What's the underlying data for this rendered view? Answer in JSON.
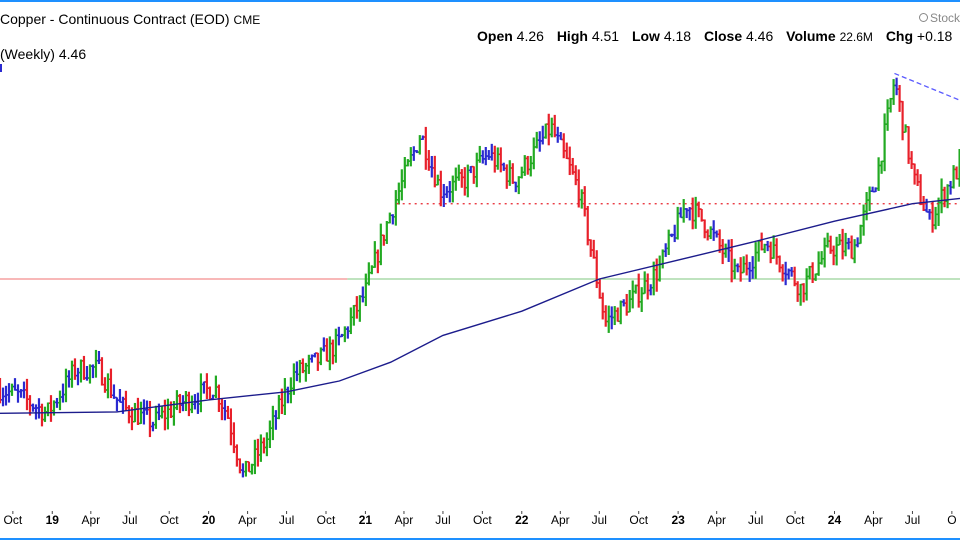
{
  "header": {
    "title": "Copper - Continuous Contract (EOD)",
    "exchange": "CME",
    "brand": "Stock",
    "ohlc": {
      "open_label": "Open",
      "open": "4.26",
      "high_label": "High",
      "high": "4.51",
      "low_label": "Low",
      "low": "4.18",
      "close_label": "Close",
      "close": "4.46",
      "volume_label": "Volume",
      "volume": "22.6M",
      "chg_label": "Chg",
      "chg": "+0.18"
    },
    "sub_label": "(Weekly) 4.46"
  },
  "colors": {
    "up": "#22aa22",
    "down": "#e8202a",
    "neutral": "#2a2ad0",
    "ma": "#1c1c8c",
    "resistance": "#e8202a",
    "ref_red": "#f07070",
    "ref_green": "#7fc77f",
    "trend": "#5a5aff",
    "frame": "#1e90ff"
  },
  "chart_data": {
    "type": "line",
    "ylim": [
      1.9,
      5.25
    ],
    "xlim": [
      "2018-09-01",
      "2024-10-20"
    ],
    "x_ticks": [
      {
        "date": "2018-10-01",
        "label": "Oct",
        "bold": false
      },
      {
        "date": "2019-01-01",
        "label": "19",
        "bold": true
      },
      {
        "date": "2019-04-01",
        "label": "Apr",
        "bold": false
      },
      {
        "date": "2019-07-01",
        "label": "Jul",
        "bold": false
      },
      {
        "date": "2019-10-01",
        "label": "Oct",
        "bold": false
      },
      {
        "date": "2020-01-01",
        "label": "20",
        "bold": true
      },
      {
        "date": "2020-04-01",
        "label": "Apr",
        "bold": false
      },
      {
        "date": "2020-07-01",
        "label": "Jul",
        "bold": false
      },
      {
        "date": "2020-10-01",
        "label": "Oct",
        "bold": false
      },
      {
        "date": "2021-01-01",
        "label": "21",
        "bold": true
      },
      {
        "date": "2021-04-01",
        "label": "Apr",
        "bold": false
      },
      {
        "date": "2021-07-01",
        "label": "Jul",
        "bold": false
      },
      {
        "date": "2021-10-01",
        "label": "Oct",
        "bold": false
      },
      {
        "date": "2022-01-01",
        "label": "22",
        "bold": true
      },
      {
        "date": "2022-04-01",
        "label": "Apr",
        "bold": false
      },
      {
        "date": "2022-07-01",
        "label": "Jul",
        "bold": false
      },
      {
        "date": "2022-10-01",
        "label": "Oct",
        "bold": false
      },
      {
        "date": "2023-01-01",
        "label": "23",
        "bold": true
      },
      {
        "date": "2023-04-01",
        "label": "Apr",
        "bold": false
      },
      {
        "date": "2023-07-01",
        "label": "Jul",
        "bold": false
      },
      {
        "date": "2023-10-01",
        "label": "Oct",
        "bold": false
      },
      {
        "date": "2024-01-01",
        "label": "24",
        "bold": true
      },
      {
        "date": "2024-04-01",
        "label": "Apr",
        "bold": false
      },
      {
        "date": "2024-07-01",
        "label": "Jul",
        "bold": false
      },
      {
        "date": "2024-10-01",
        "label": "O",
        "bold": false
      }
    ],
    "anchors": [
      {
        "date": "2018-09-01",
        "price": 2.8
      },
      {
        "date": "2018-10-15",
        "price": 2.75
      },
      {
        "date": "2018-12-20",
        "price": 2.62
      },
      {
        "date": "2019-02-25",
        "price": 2.95
      },
      {
        "date": "2019-04-20",
        "price": 2.95
      },
      {
        "date": "2019-06-10",
        "price": 2.67
      },
      {
        "date": "2019-08-25",
        "price": 2.55
      },
      {
        "date": "2019-10-20",
        "price": 2.68
      },
      {
        "date": "2020-01-15",
        "price": 2.82
      },
      {
        "date": "2020-02-15",
        "price": 2.6
      },
      {
        "date": "2020-03-22",
        "price": 2.15
      },
      {
        "date": "2020-05-15",
        "price": 2.42
      },
      {
        "date": "2020-07-15",
        "price": 2.9
      },
      {
        "date": "2020-09-15",
        "price": 3.02
      },
      {
        "date": "2020-11-01",
        "price": 3.15
      },
      {
        "date": "2021-01-01",
        "price": 3.52
      },
      {
        "date": "2021-02-25",
        "price": 4.08
      },
      {
        "date": "2021-05-10",
        "price": 4.7
      },
      {
        "date": "2021-06-25",
        "price": 4.28
      },
      {
        "date": "2021-08-20",
        "price": 4.35
      },
      {
        "date": "2021-10-15",
        "price": 4.55
      },
      {
        "date": "2021-12-15",
        "price": 4.35
      },
      {
        "date": "2022-03-10",
        "price": 4.75
      },
      {
        "date": "2022-05-15",
        "price": 4.28
      },
      {
        "date": "2022-07-15",
        "price": 3.3
      },
      {
        "date": "2022-09-10",
        "price": 3.45
      },
      {
        "date": "2022-11-15",
        "price": 3.68
      },
      {
        "date": "2023-01-20",
        "price": 4.18
      },
      {
        "date": "2023-03-01",
        "price": 4.05
      },
      {
        "date": "2023-05-20",
        "price": 3.65
      },
      {
        "date": "2023-07-25",
        "price": 3.9
      },
      {
        "date": "2023-10-15",
        "price": 3.55
      },
      {
        "date": "2023-12-20",
        "price": 3.85
      },
      {
        "date": "2024-02-15",
        "price": 3.85
      },
      {
        "date": "2024-04-10",
        "price": 4.4
      },
      {
        "date": "2024-05-20",
        "price": 5.1
      },
      {
        "date": "2024-07-05",
        "price": 4.35
      },
      {
        "date": "2024-08-10",
        "price": 4.05
      },
      {
        "date": "2024-09-10",
        "price": 4.25
      },
      {
        "date": "2024-10-20",
        "price": 4.46
      }
    ],
    "moving_average": [
      {
        "date": "2018-09-01",
        "price": 2.62
      },
      {
        "date": "2019-06-01",
        "price": 2.63
      },
      {
        "date": "2020-01-01",
        "price": 2.72
      },
      {
        "date": "2020-07-01",
        "price": 2.78
      },
      {
        "date": "2020-11-01",
        "price": 2.86
      },
      {
        "date": "2021-03-01",
        "price": 3.0
      },
      {
        "date": "2021-07-01",
        "price": 3.2
      },
      {
        "date": "2022-01-01",
        "price": 3.38
      },
      {
        "date": "2022-07-01",
        "price": 3.62
      },
      {
        "date": "2023-01-01",
        "price": 3.76
      },
      {
        "date": "2023-07-01",
        "price": 3.9
      },
      {
        "date": "2024-01-01",
        "price": 4.05
      },
      {
        "date": "2024-07-01",
        "price": 4.18
      },
      {
        "date": "2024-10-20",
        "price": 4.22
      }
    ],
    "resistance_line": {
      "price": 4.18,
      "from": "2021-03-15",
      "to": "2024-10-20"
    },
    "reference_lines": [
      {
        "price": 3.62,
        "from": "2018-09-01",
        "to": "2020-11-20",
        "color": "ref_red"
      },
      {
        "price": 3.62,
        "from": "2020-11-20",
        "to": "2024-10-20",
        "color": "ref_green"
      }
    ],
    "trend_line": {
      "from": {
        "date": "2024-05-20",
        "price": 5.15
      },
      "to": {
        "date": "2024-10-20",
        "price": 4.95
      }
    }
  }
}
